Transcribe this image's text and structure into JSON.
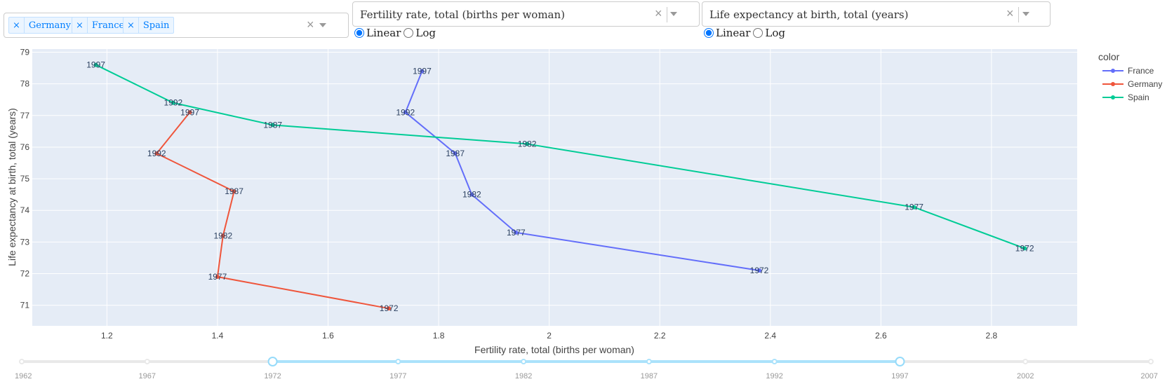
{
  "country_filter": {
    "selected": [
      "Germany",
      "France",
      "Spain"
    ],
    "remove_symbol": "×",
    "clear_symbol": "×"
  },
  "x_indicator": {
    "value": "Fertility rate, total (births per woman)",
    "clear_symbol": "×",
    "scale_options": [
      "Linear",
      "Log"
    ],
    "selected_scale": "Linear"
  },
  "y_indicator": {
    "value": "Life expectancy at birth, total (years)",
    "clear_symbol": "×",
    "scale_options": [
      "Linear",
      "Log"
    ],
    "selected_scale": "Linear"
  },
  "chart_data": {
    "type": "line",
    "xlabel": "Fertility rate, total (births per woman)",
    "ylabel": "Life expectancy at birth, total (years)",
    "xlim": [
      1.065,
      2.955
    ],
    "ylim": [
      70.35,
      79.1
    ],
    "x_ticks": [
      1.2,
      1.4,
      1.6,
      1.8,
      2,
      2.2,
      2.4,
      2.6,
      2.8
    ],
    "y_ticks": [
      71,
      72,
      73,
      74,
      75,
      76,
      77,
      78,
      79
    ],
    "grid": true,
    "legend_title": "color",
    "legend_position": "top-right",
    "series": [
      {
        "name": "France",
        "color": "#636efa",
        "labels": [
          "1972",
          "1977",
          "1982",
          "1987",
          "1992",
          "1997"
        ],
        "x": [
          2.38,
          1.94,
          1.86,
          1.83,
          1.74,
          1.77
        ],
        "y": [
          72.1,
          73.3,
          74.5,
          75.8,
          77.1,
          78.4
        ]
      },
      {
        "name": "Germany",
        "color": "#ef553b",
        "labels": [
          "1972",
          "1977",
          "1982",
          "1987",
          "1992",
          "1997"
        ],
        "x": [
          1.71,
          1.4,
          1.41,
          1.43,
          1.29,
          1.35
        ],
        "y": [
          70.9,
          71.9,
          73.2,
          74.6,
          75.8,
          77.1
        ]
      },
      {
        "name": "Spain",
        "color": "#00cc96",
        "labels": [
          "1972",
          "1977",
          "1982",
          "1987",
          "1992",
          "1997"
        ],
        "x": [
          2.86,
          2.66,
          1.96,
          1.5,
          1.32,
          1.18
        ],
        "y": [
          72.8,
          74.1,
          76.1,
          76.7,
          77.4,
          78.6
        ]
      }
    ]
  },
  "year_slider": {
    "marks": [
      "1962",
      "1967",
      "1972",
      "1977",
      "1982",
      "1987",
      "1992",
      "1997",
      "2002",
      "2007"
    ],
    "range": [
      "1972",
      "1997"
    ]
  }
}
